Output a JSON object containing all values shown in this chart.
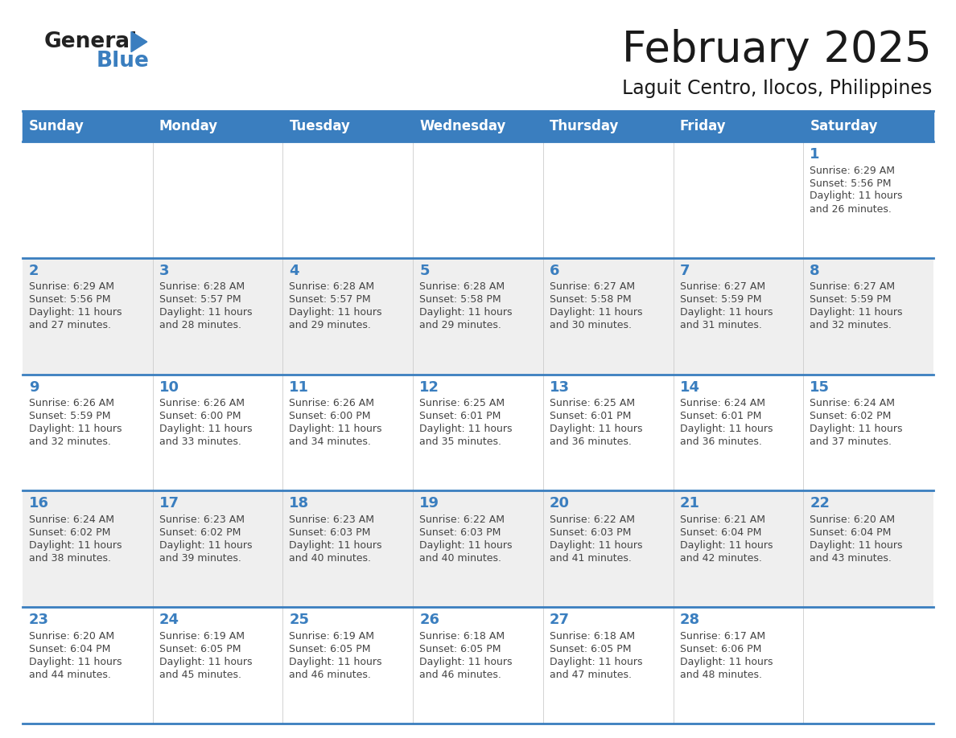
{
  "title": "February 2025",
  "subtitle": "Laguit Centro, Ilocos, Philippines",
  "days_of_week": [
    "Sunday",
    "Monday",
    "Tuesday",
    "Wednesday",
    "Thursday",
    "Friday",
    "Saturday"
  ],
  "header_bg": "#3a7ebf",
  "header_text_color": "#FFFFFF",
  "cell_bg_white": "#FFFFFF",
  "cell_bg_gray": "#efefef",
  "divider_color": "#3a7ebf",
  "day_number_color": "#3a7ebf",
  "text_color": "#444444",
  "calendar_data": [
    [
      null,
      null,
      null,
      null,
      null,
      null,
      {
        "day": 1,
        "sunrise": "6:29 AM",
        "sunset": "5:56 PM",
        "daylight": "11 hours and 26 minutes."
      }
    ],
    [
      {
        "day": 2,
        "sunrise": "6:29 AM",
        "sunset": "5:56 PM",
        "daylight": "11 hours and 27 minutes."
      },
      {
        "day": 3,
        "sunrise": "6:28 AM",
        "sunset": "5:57 PM",
        "daylight": "11 hours and 28 minutes."
      },
      {
        "day": 4,
        "sunrise": "6:28 AM",
        "sunset": "5:57 PM",
        "daylight": "11 hours and 29 minutes."
      },
      {
        "day": 5,
        "sunrise": "6:28 AM",
        "sunset": "5:58 PM",
        "daylight": "11 hours and 29 minutes."
      },
      {
        "day": 6,
        "sunrise": "6:27 AM",
        "sunset": "5:58 PM",
        "daylight": "11 hours and 30 minutes."
      },
      {
        "day": 7,
        "sunrise": "6:27 AM",
        "sunset": "5:59 PM",
        "daylight": "11 hours and 31 minutes."
      },
      {
        "day": 8,
        "sunrise": "6:27 AM",
        "sunset": "5:59 PM",
        "daylight": "11 hours and 32 minutes."
      }
    ],
    [
      {
        "day": 9,
        "sunrise": "6:26 AM",
        "sunset": "5:59 PM",
        "daylight": "11 hours and 32 minutes."
      },
      {
        "day": 10,
        "sunrise": "6:26 AM",
        "sunset": "6:00 PM",
        "daylight": "11 hours and 33 minutes."
      },
      {
        "day": 11,
        "sunrise": "6:26 AM",
        "sunset": "6:00 PM",
        "daylight": "11 hours and 34 minutes."
      },
      {
        "day": 12,
        "sunrise": "6:25 AM",
        "sunset": "6:01 PM",
        "daylight": "11 hours and 35 minutes."
      },
      {
        "day": 13,
        "sunrise": "6:25 AM",
        "sunset": "6:01 PM",
        "daylight": "11 hours and 36 minutes."
      },
      {
        "day": 14,
        "sunrise": "6:24 AM",
        "sunset": "6:01 PM",
        "daylight": "11 hours and 36 minutes."
      },
      {
        "day": 15,
        "sunrise": "6:24 AM",
        "sunset": "6:02 PM",
        "daylight": "11 hours and 37 minutes."
      }
    ],
    [
      {
        "day": 16,
        "sunrise": "6:24 AM",
        "sunset": "6:02 PM",
        "daylight": "11 hours and 38 minutes."
      },
      {
        "day": 17,
        "sunrise": "6:23 AM",
        "sunset": "6:02 PM",
        "daylight": "11 hours and 39 minutes."
      },
      {
        "day": 18,
        "sunrise": "6:23 AM",
        "sunset": "6:03 PM",
        "daylight": "11 hours and 40 minutes."
      },
      {
        "day": 19,
        "sunrise": "6:22 AM",
        "sunset": "6:03 PM",
        "daylight": "11 hours and 40 minutes."
      },
      {
        "day": 20,
        "sunrise": "6:22 AM",
        "sunset": "6:03 PM",
        "daylight": "11 hours and 41 minutes."
      },
      {
        "day": 21,
        "sunrise": "6:21 AM",
        "sunset": "6:04 PM",
        "daylight": "11 hours and 42 minutes."
      },
      {
        "day": 22,
        "sunrise": "6:20 AM",
        "sunset": "6:04 PM",
        "daylight": "11 hours and 43 minutes."
      }
    ],
    [
      {
        "day": 23,
        "sunrise": "6:20 AM",
        "sunset": "6:04 PM",
        "daylight": "11 hours and 44 minutes."
      },
      {
        "day": 24,
        "sunrise": "6:19 AM",
        "sunset": "6:05 PM",
        "daylight": "11 hours and 45 minutes."
      },
      {
        "day": 25,
        "sunrise": "6:19 AM",
        "sunset": "6:05 PM",
        "daylight": "11 hours and 46 minutes."
      },
      {
        "day": 26,
        "sunrise": "6:18 AM",
        "sunset": "6:05 PM",
        "daylight": "11 hours and 46 minutes."
      },
      {
        "day": 27,
        "sunrise": "6:18 AM",
        "sunset": "6:05 PM",
        "daylight": "11 hours and 47 minutes."
      },
      {
        "day": 28,
        "sunrise": "6:17 AM",
        "sunset": "6:06 PM",
        "daylight": "11 hours and 48 minutes."
      },
      null
    ]
  ],
  "logo_text_general": "General",
  "logo_text_blue": "Blue",
  "logo_color_general": "#222222",
  "logo_color_blue": "#3a7ebf",
  "logo_triangle_color": "#3a7ebf",
  "title_fontsize": 38,
  "subtitle_fontsize": 17,
  "dow_fontsize": 12,
  "day_num_fontsize": 13,
  "cell_text_fontsize": 9
}
